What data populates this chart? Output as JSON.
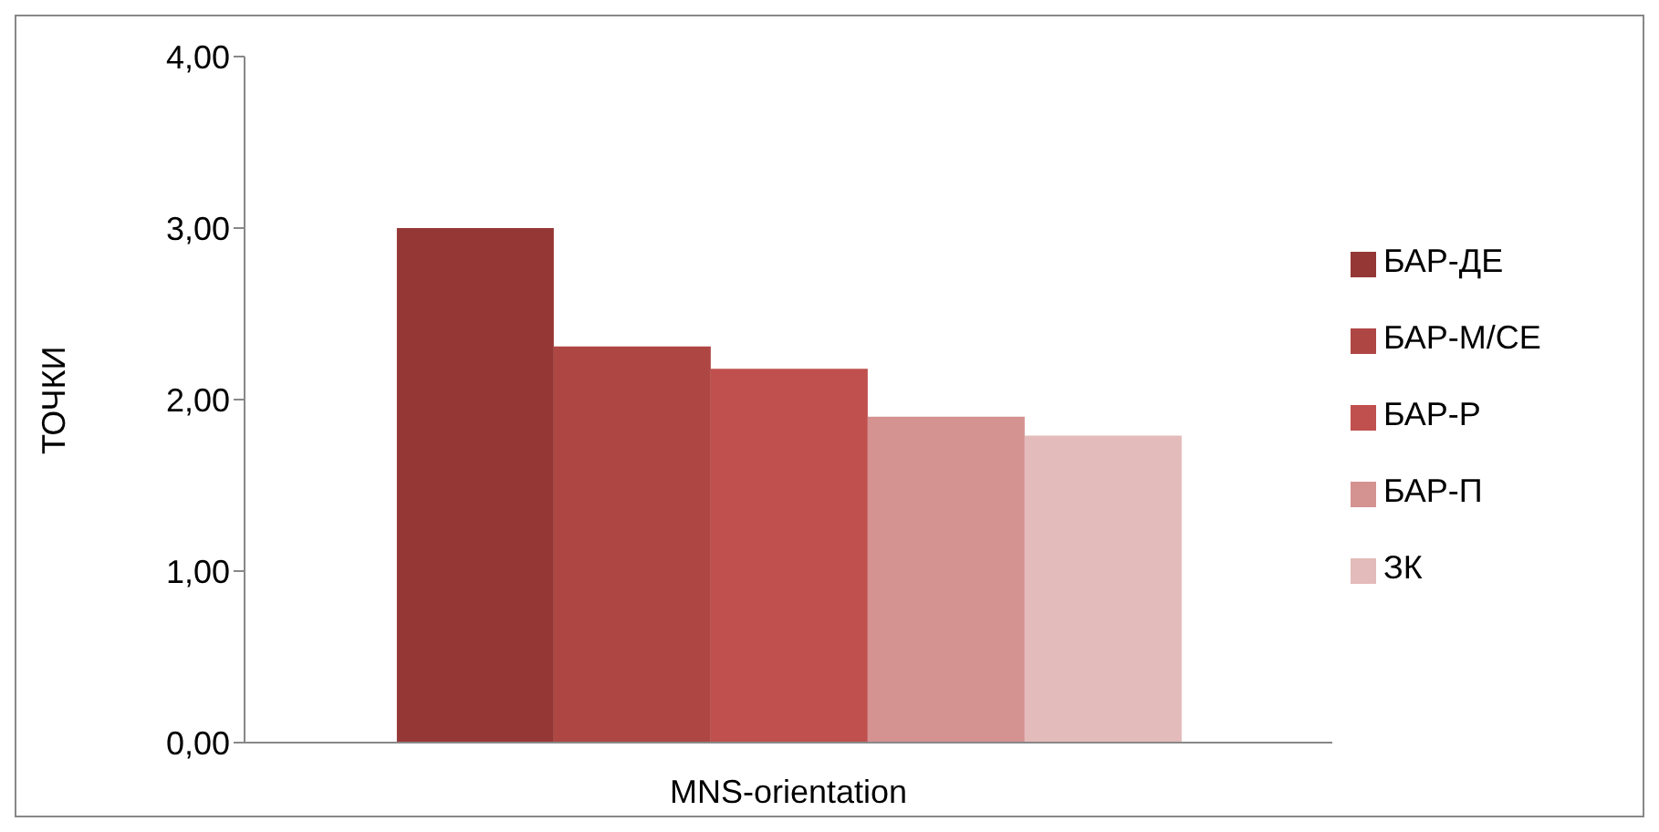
{
  "chart_data": {
    "type": "bar",
    "ylabel": "ТОЧКИ",
    "categories": [
      "MNS-orientation"
    ],
    "series": [
      {
        "name": "БАР-ДЕ",
        "color": "#953735",
        "values": [
          3.0
        ]
      },
      {
        "name": "БАР-М/СЕ",
        "color": "#ae4744",
        "values": [
          2.31
        ]
      },
      {
        "name": "БАР-Р",
        "color": "#c0504d",
        "values": [
          2.18
        ]
      },
      {
        "name": "БАР-П",
        "color": "#d49291",
        "values": [
          1.9
        ]
      },
      {
        "name": "ЗК",
        "color": "#e3bbba",
        "values": [
          1.79
        ]
      }
    ],
    "ylim": [
      0,
      4
    ],
    "yticks": [
      {
        "value": 0,
        "label": "0,00"
      },
      {
        "value": 1,
        "label": "1,00"
      },
      {
        "value": 2,
        "label": "2,00"
      },
      {
        "value": 3,
        "label": "3,00"
      },
      {
        "value": 4,
        "label": "4,00"
      }
    ],
    "grid": false,
    "legend": "right"
  }
}
